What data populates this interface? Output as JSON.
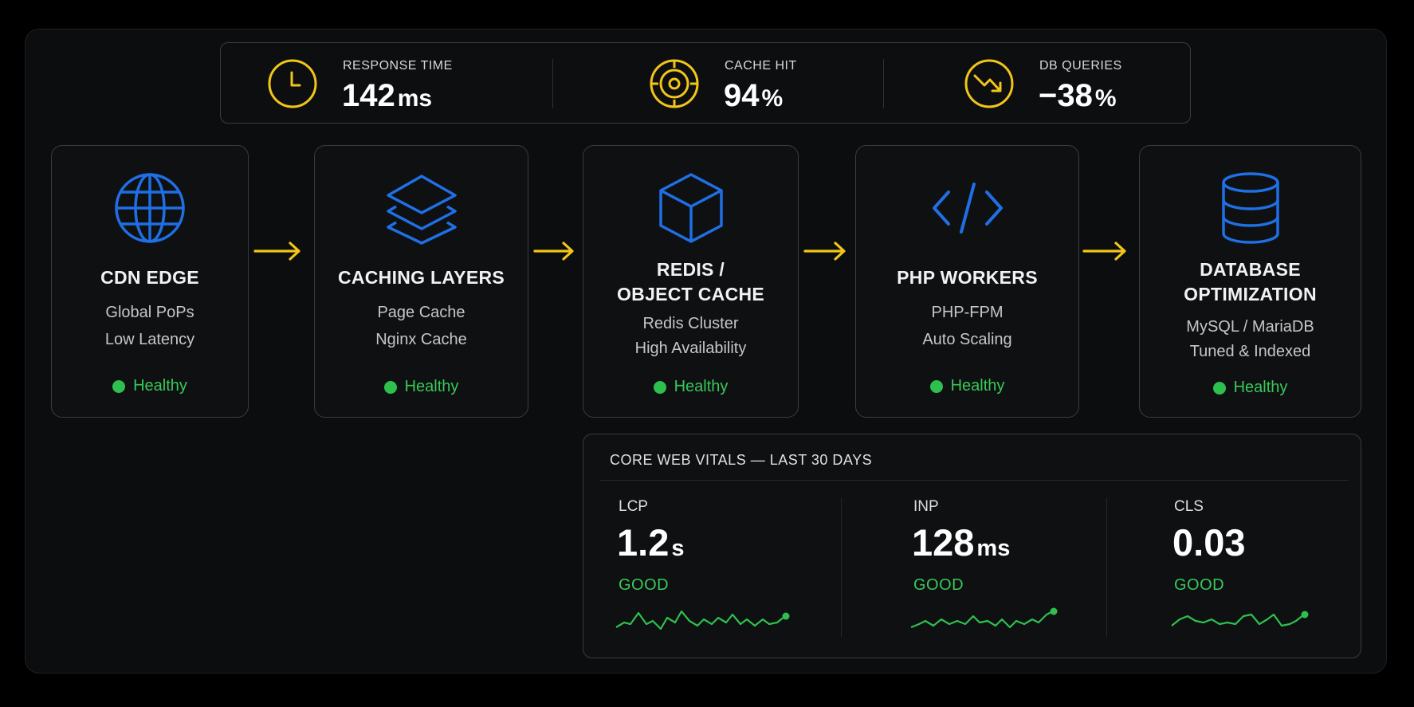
{
  "metrics": [
    {
      "label": "RESPONSE TIME",
      "value": "142",
      "unit": "ms",
      "icon": "clock-icon"
    },
    {
      "label": "CACHE HIT",
      "value": "94",
      "unit": "%",
      "icon": "target-icon"
    },
    {
      "label": "DB QUERIES",
      "value": "−38",
      "unit": "%",
      "icon": "trend-down-icon"
    }
  ],
  "pipeline": [
    {
      "title": "CDN EDGE",
      "title2": "",
      "line1": "Global PoPs",
      "line2": "Low Latency",
      "status": "Healthy",
      "icon": "globe-icon"
    },
    {
      "title": "CACHING LAYERS",
      "title2": "",
      "line1": "Page Cache",
      "line2": "Nginx Cache",
      "status": "Healthy",
      "icon": "layers-icon"
    },
    {
      "title": "REDIS /",
      "title2": "OBJECT CACHE",
      "line1": "Redis Cluster",
      "line2": "High Availability",
      "status": "Healthy",
      "icon": "cube-icon"
    },
    {
      "title": "PHP WORKERS",
      "title2": "",
      "line1": "PHP-FPM",
      "line2": "Auto Scaling",
      "status": "Healthy",
      "icon": "code-icon"
    },
    {
      "title": "DATABASE",
      "title2": "OPTIMIZATION",
      "line1": "MySQL / MariaDB",
      "line2": "Tuned & Indexed",
      "status": "Healthy",
      "icon": "database-icon"
    }
  ],
  "vitals": {
    "title": "CORE WEB VITALS — LAST 30 DAYS",
    "items": [
      {
        "label": "LCP",
        "value": "1.2",
        "unit": "s",
        "status": "GOOD"
      },
      {
        "label": "INP",
        "value": "128",
        "unit": "ms",
        "status": "GOOD"
      },
      {
        "label": "CLS",
        "value": "0.03",
        "unit": "",
        "status": "GOOD"
      }
    ]
  },
  "colors": {
    "accent_yellow": "#f2c619",
    "icon_blue": "#1f6fe5",
    "healthy_green": "#2ec04f",
    "background": "#0c0d0f"
  }
}
